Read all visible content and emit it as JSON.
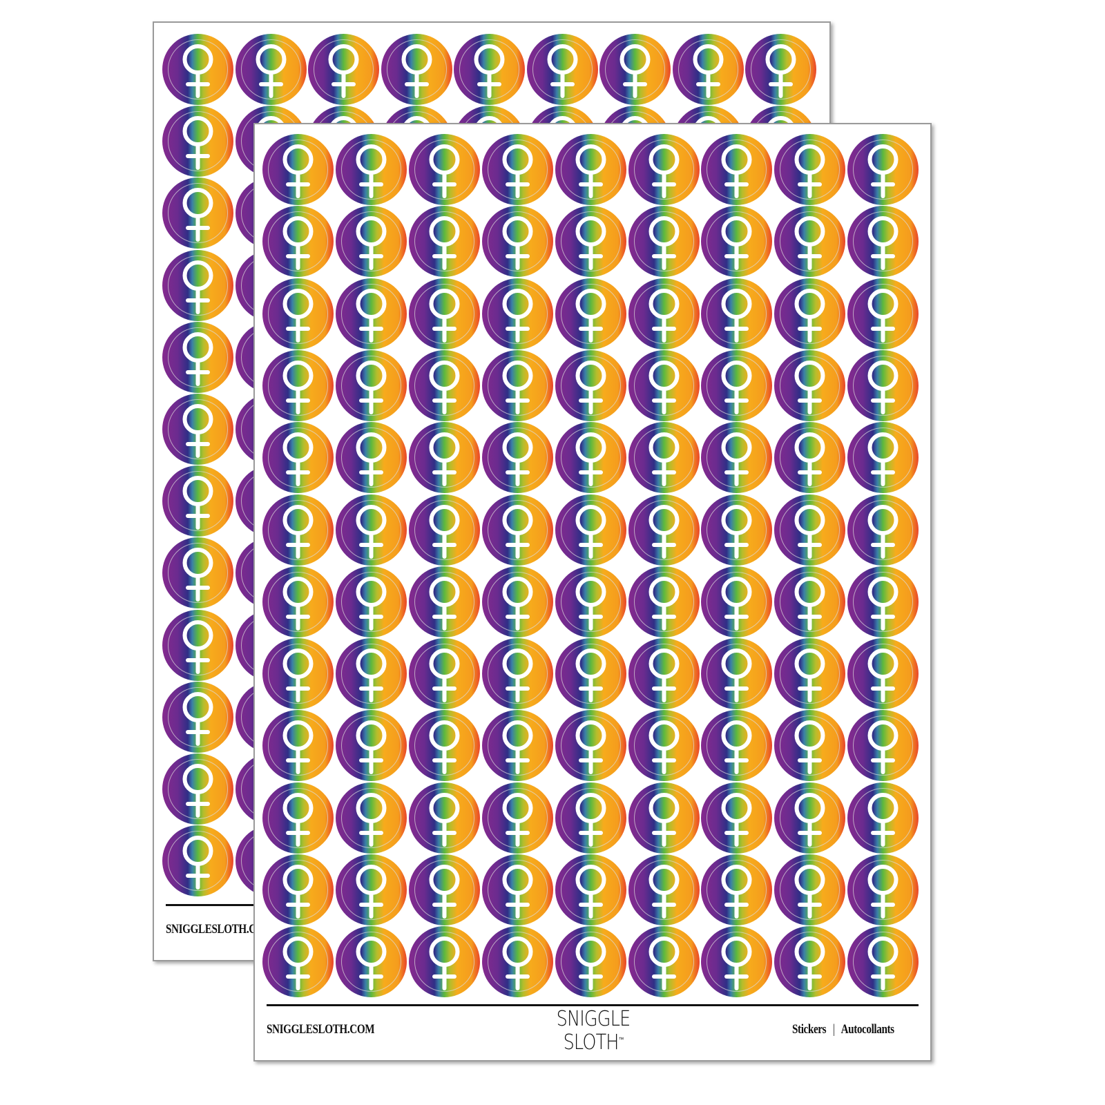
{
  "product": {
    "sticker_symbol": "venus-female-symbol-icon",
    "gradient_colors": [
      "#852a8e",
      "#2f2e86",
      "#5cb83e",
      "#f7ab1c",
      "#e8442a"
    ],
    "columns": 9,
    "back_rows": 12,
    "front_rows": 12
  },
  "back_sheet": {
    "website": "SNIGGLESLOTH.COM"
  },
  "front_sheet": {
    "website": "SNIGGLESLOTH.COM",
    "logo_line1": "SNIGGLE",
    "logo_line2": "SLOTH",
    "logo_tm": "™",
    "label_en": "Stickers",
    "separator": "|",
    "label_fr": "Autocollants"
  }
}
